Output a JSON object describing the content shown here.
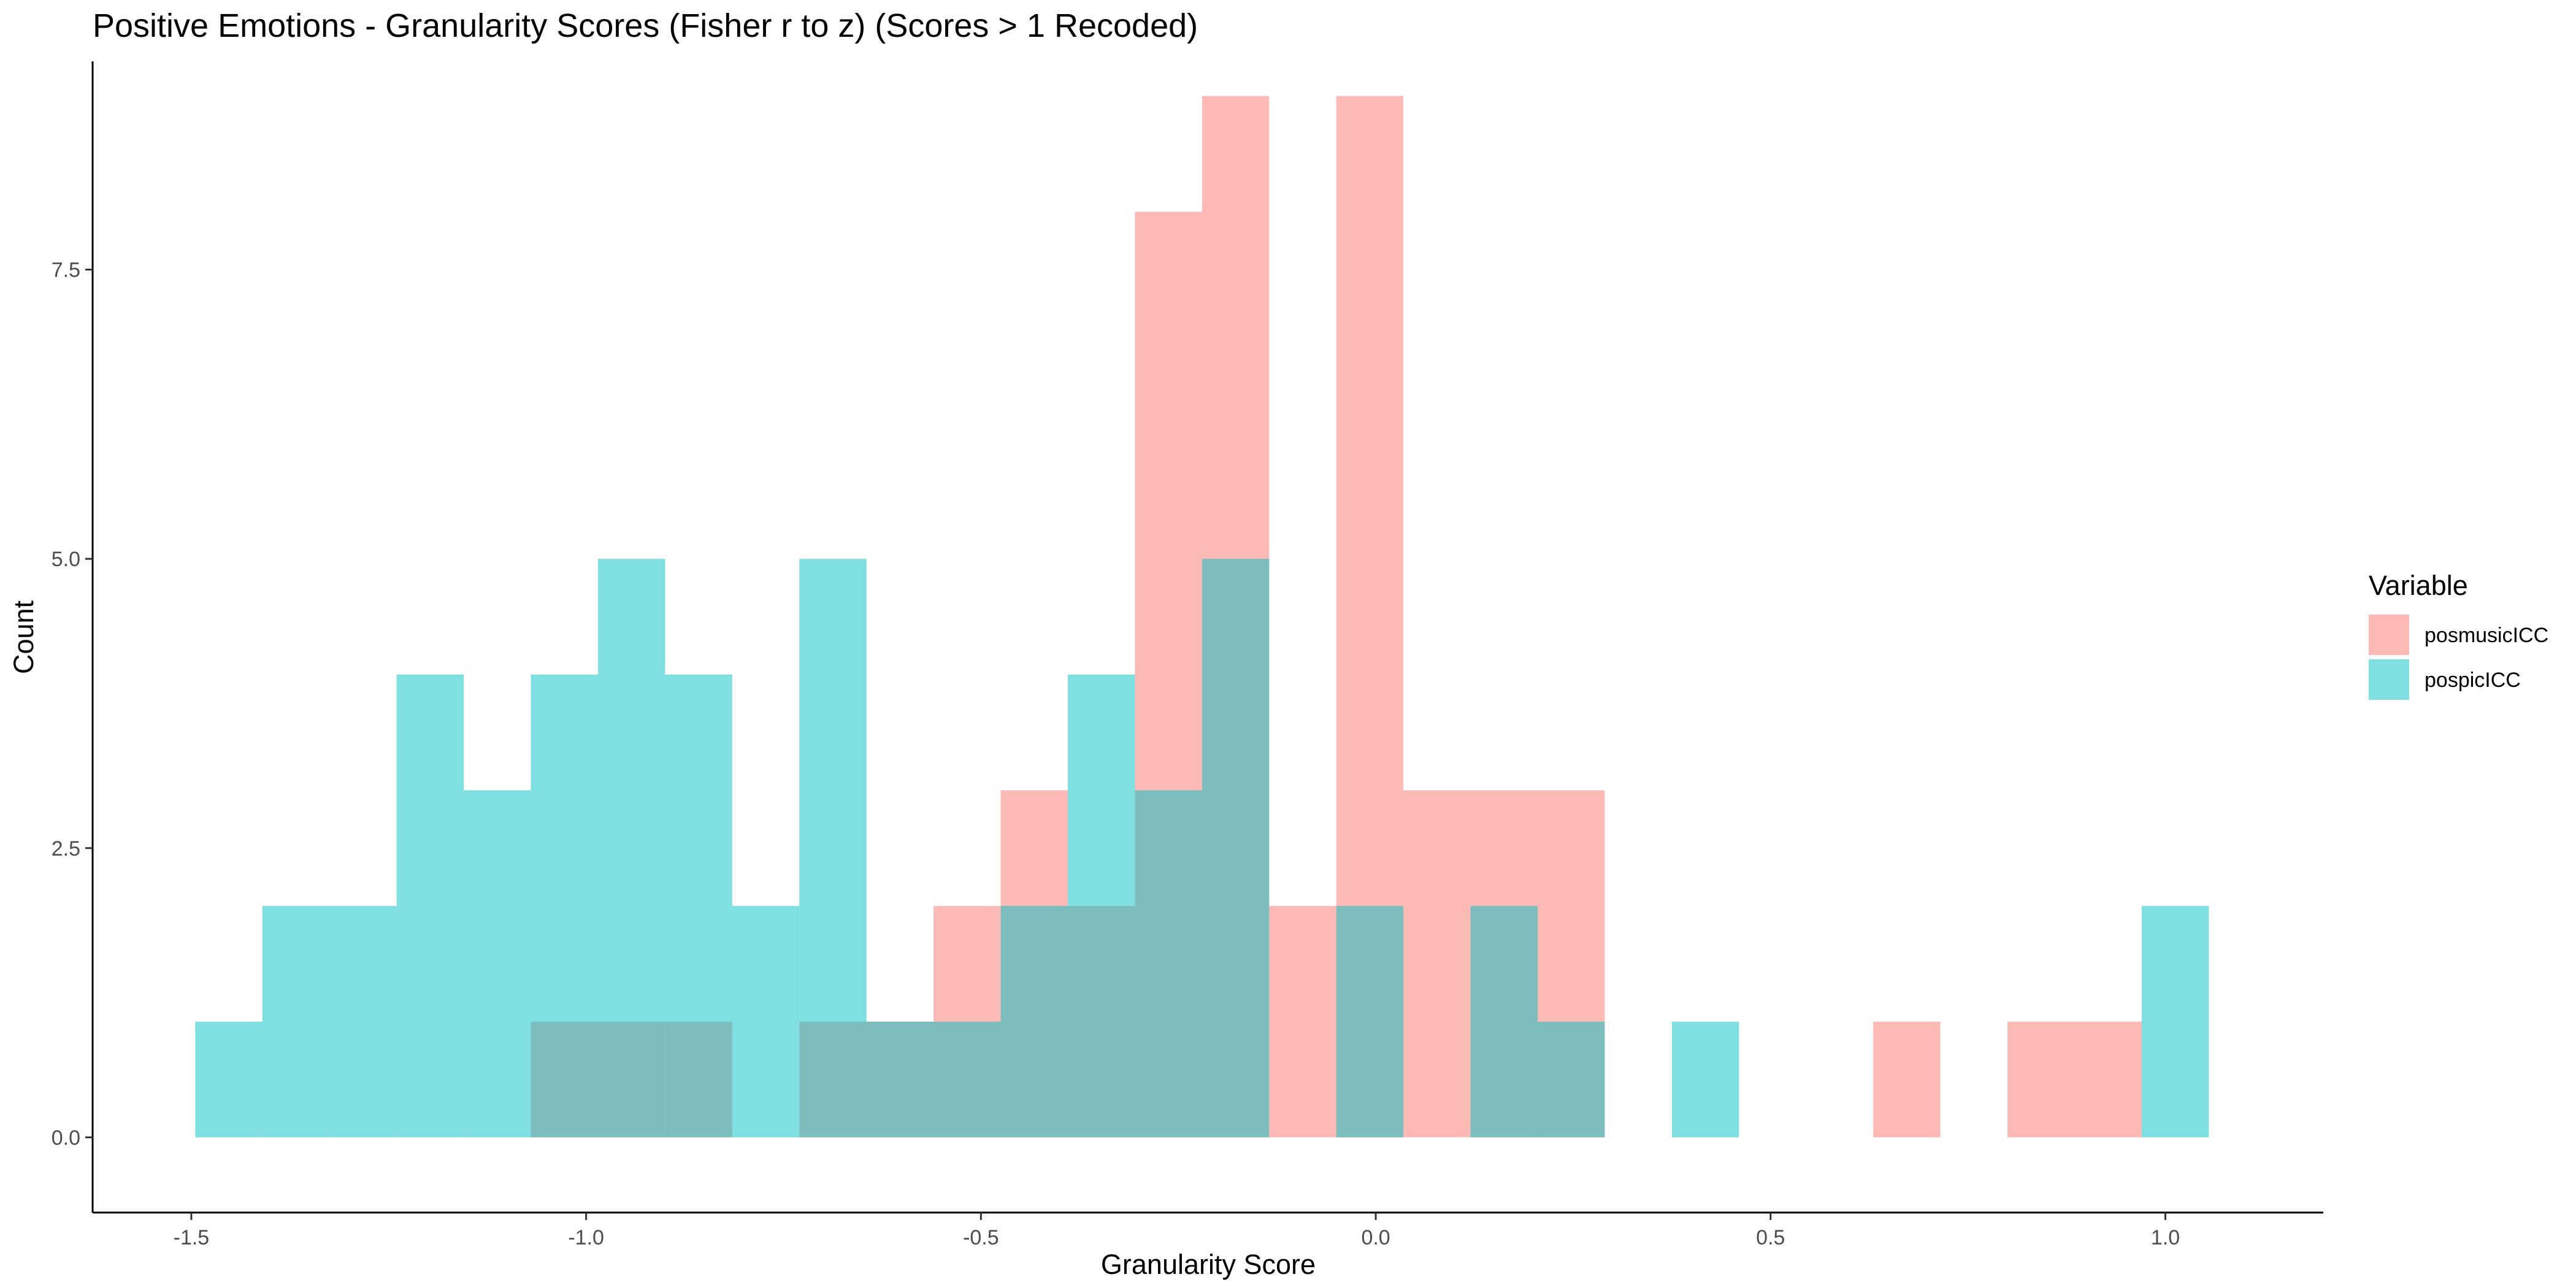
{
  "chart_data": {
    "type": "histogram",
    "title": "Positive Emotions - Granularity Scores (Fisher r to z) (Scores > 1 Recoded)",
    "xlabel": "Granularity Score",
    "ylabel": "Count",
    "xlim": [
      -1.625,
      1.2
    ],
    "ylim": [
      -0.65,
      9.3
    ],
    "xticks": [
      -1.5,
      -1.0,
      -0.5,
      0.0,
      0.5,
      1.0
    ],
    "xtick_labels": [
      "-1.5",
      "-1.0",
      "-0.5",
      "0.0",
      "0.5",
      "1.0"
    ],
    "yticks": [
      0,
      2.5,
      5,
      7.5
    ],
    "ytick_labels": [
      "0.0",
      "2.5",
      "5.0",
      "7.5"
    ],
    "grid": false,
    "legend_position": "right",
    "legend_title": "Variable",
    "bin_edges": [
      -1.495,
      -1.41,
      -1.325,
      -1.24,
      -1.155,
      -1.07,
      -0.985,
      -0.9,
      -0.815,
      -0.73,
      -0.645,
      -0.56,
      -0.475,
      -0.39,
      -0.305,
      -0.22,
      -0.135,
      -0.05,
      0.035,
      0.12,
      0.205,
      0.29,
      0.375,
      0.46,
      0.545,
      0.63,
      0.715,
      0.8,
      0.885,
      0.97,
      1.055
    ],
    "series": [
      {
        "name": "posmusicICC",
        "color": "#F8766D",
        "opacity": 0.5,
        "values": [
          0,
          0,
          0,
          0,
          0,
          1,
          1,
          1,
          0,
          1,
          1,
          2,
          3,
          2,
          8,
          9,
          2,
          9,
          3,
          3,
          3,
          0,
          0,
          0,
          0,
          1,
          0,
          1,
          1,
          0
        ]
      },
      {
        "name": "pospicICC",
        "color": "#00BFC4",
        "opacity": 0.5,
        "values": [
          1,
          2,
          2,
          4,
          3,
          4,
          5,
          4,
          2,
          5,
          1,
          1,
          2,
          4,
          3,
          5,
          0,
          2,
          0,
          2,
          1,
          0,
          1,
          0,
          0,
          0,
          0,
          0,
          0,
          2
        ]
      }
    ]
  }
}
